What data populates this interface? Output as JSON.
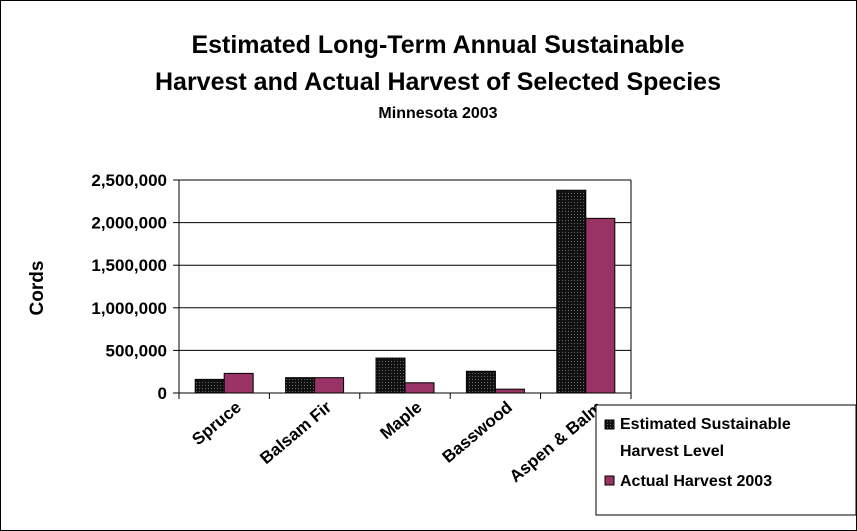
{
  "chart_data": {
    "type": "bar",
    "title_lines": [
      "Estimated Long-Term Annual Sustainable",
      "Harvest and Actual Harvest of Selected Species"
    ],
    "subtitle": "Minnesota 2003",
    "xlabel": "",
    "ylabel": "Cords",
    "ylim": [
      0,
      2500000
    ],
    "yticks": [
      "0",
      "500,000",
      "1,000,000",
      "1,500,000",
      "2,000,000",
      "2,500,000"
    ],
    "grid": true,
    "legend_position": "bottom-right",
    "categories": [
      "Spruce",
      "Balsam Fir",
      "Maple",
      "Basswood",
      "Aspen & Balm"
    ],
    "series": [
      {
        "name_lines": [
          "Estimated  Sustainable",
          "Harvest Level"
        ],
        "color": "#111111",
        "values": [
          160000,
          180000,
          410000,
          255000,
          2380000
        ]
      },
      {
        "name_lines": [
          "Actual Harvest  2003"
        ],
        "color": "#993366",
        "values": [
          230000,
          180000,
          120000,
          45000,
          2050000
        ]
      }
    ]
  }
}
